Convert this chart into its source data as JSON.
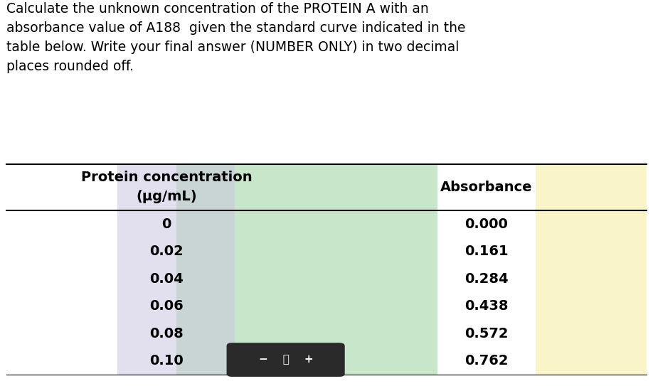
{
  "question_text": [
    "Calculate the unknown concentration of the PROTEIN A with an",
    "absorbance value of A188  given the standard curve indicated in the",
    "table below. Write your final answer (NUMBER ONLY) in two decimal",
    "places rounded off."
  ],
  "col1_header_line1": "Protein concentration",
  "col1_header_line2": "(µg/mL)",
  "col2_header": "Absorbance",
  "col1_values": [
    "0",
    "0.02",
    "0.04",
    "0.06",
    "0.08",
    "0.10"
  ],
  "col2_values": [
    "0.000",
    "0.161",
    "0.284",
    "0.438",
    "0.572",
    "0.762"
  ],
  "bg_color": "#ffffff",
  "text_color": "#000000",
  "table_line_color": "#000000",
  "question_font_size": 13.5,
  "header_font_size": 14,
  "cell_font_size": 14,
  "watermark_color_green": "#c8e6c9",
  "watermark_color_purple": "#cbc8e0",
  "watermark_color_yellow": "#faf5c8",
  "zoom_bar_color": "#2a2a2a"
}
